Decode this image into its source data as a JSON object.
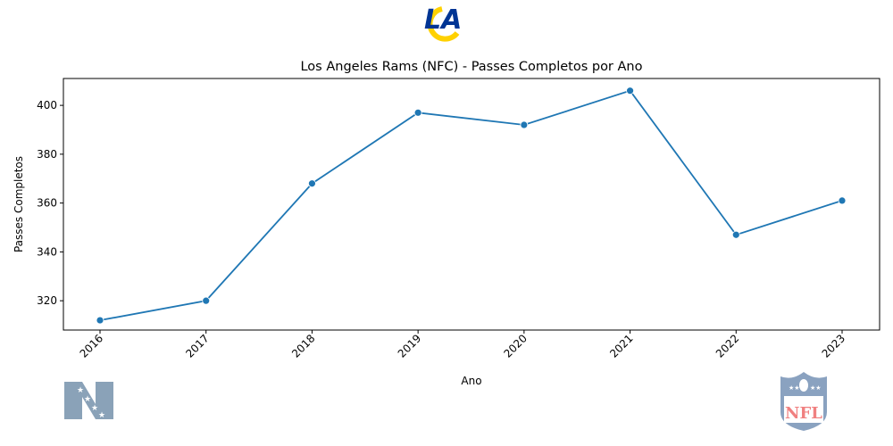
{
  "chart_data": {
    "type": "line",
    "title": "Los Angeles Rams (NFC) - Passes Completos por Ano",
    "xlabel": "Ano",
    "ylabel": "Passes Completos",
    "categories": [
      "2016",
      "2017",
      "2018",
      "2019",
      "2020",
      "2021",
      "2022",
      "2023"
    ],
    "series": [
      {
        "values": [
          312,
          320,
          368,
          397,
          392,
          406,
          347,
          361
        ]
      }
    ],
    "yticks": [
      320,
      340,
      360,
      380,
      400
    ],
    "ylim": [
      308,
      411
    ],
    "grid": false,
    "line_color": "#1f77b4"
  },
  "logos": {
    "team": {
      "icon": "la-rams-logo",
      "text": "LA",
      "primary": "#003594",
      "accent": "#FFD100"
    },
    "conference": {
      "icon": "nfc-logo",
      "text": "N",
      "color": "#8aa2b8"
    },
    "league": {
      "icon": "nfl-shield-logo",
      "text": "NFL",
      "primary": "#8aa2c0",
      "accent": "#f08080"
    }
  }
}
